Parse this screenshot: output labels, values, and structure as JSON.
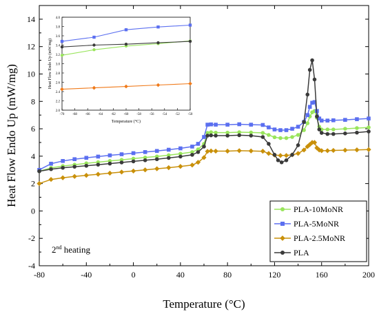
{
  "chart_data": [
    {
      "type": "line",
      "xlabel": "Temperature (°C)",
      "ylabel": "Heat Flow Endo Up (mW/mg)",
      "xlim": [
        -80,
        200
      ],
      "ylim": [
        -4,
        15
      ],
      "xticks": [
        "-80",
        "-40",
        "0",
        "40",
        "80",
        "120",
        "160",
        "200"
      ],
      "yticks": [
        "-4",
        "-2",
        "0",
        "2",
        "4",
        "6",
        "8",
        "10",
        "12",
        "14"
      ],
      "legend_position": "bottom-right",
      "annotation": {
        "main": "2",
        "sup": "nd",
        "rest": " heating"
      },
      "series": [
        {
          "name": "PLA-10MoNR",
          "color": "#99e55c",
          "marker": "circle",
          "x": [
            -80,
            -70,
            -60,
            -50,
            -40,
            -30,
            -20,
            -10,
            0,
            10,
            20,
            30,
            40,
            50,
            55,
            60,
            63,
            66,
            70,
            80,
            90,
            100,
            110,
            115,
            120,
            125,
            130,
            135,
            140,
            145,
            148,
            150,
            152,
            154,
            156,
            158,
            160,
            165,
            170,
            180,
            190,
            200
          ],
          "y": [
            2.9,
            3.15,
            3.28,
            3.38,
            3.48,
            3.56,
            3.65,
            3.73,
            3.82,
            3.9,
            3.98,
            4.07,
            4.18,
            4.3,
            4.5,
            4.9,
            5.7,
            5.75,
            5.72,
            5.72,
            5.75,
            5.73,
            5.7,
            5.55,
            5.38,
            5.32,
            5.32,
            5.4,
            5.55,
            5.9,
            6.4,
            6.9,
            7.2,
            7.3,
            6.8,
            6.15,
            5.95,
            5.95,
            5.95,
            6.0,
            6.05,
            6.1
          ]
        },
        {
          "name": "PLA-5MoNR",
          "color": "#5b6ff0",
          "marker": "square",
          "x": [
            -80,
            -70,
            -60,
            -50,
            -40,
            -30,
            -20,
            -10,
            0,
            10,
            20,
            30,
            40,
            50,
            55,
            60,
            63,
            66,
            70,
            80,
            90,
            100,
            110,
            115,
            120,
            125,
            130,
            135,
            140,
            145,
            148,
            150,
            152,
            154,
            156,
            158,
            160,
            165,
            170,
            180,
            190,
            200
          ],
          "y": [
            3.0,
            3.45,
            3.65,
            3.78,
            3.88,
            3.97,
            4.06,
            4.14,
            4.22,
            4.3,
            4.38,
            4.47,
            4.57,
            4.7,
            4.9,
            5.4,
            6.3,
            6.32,
            6.3,
            6.3,
            6.33,
            6.3,
            6.28,
            6.1,
            5.95,
            5.9,
            5.9,
            6.0,
            6.15,
            6.5,
            7.0,
            7.6,
            7.9,
            7.95,
            7.3,
            6.75,
            6.6,
            6.6,
            6.62,
            6.65,
            6.7,
            6.75
          ]
        },
        {
          "name": "PLA-2.5MoNR",
          "color": "#c9900a",
          "marker": "diamond",
          "x": [
            -80,
            -70,
            -60,
            -50,
            -40,
            -30,
            -20,
            -10,
            0,
            10,
            20,
            30,
            40,
            50,
            55,
            60,
            63,
            66,
            70,
            80,
            90,
            100,
            110,
            115,
            120,
            125,
            130,
            135,
            140,
            145,
            148,
            150,
            152,
            154,
            156,
            158,
            160,
            165,
            170,
            180,
            190,
            200
          ],
          "y": [
            2.0,
            2.3,
            2.42,
            2.52,
            2.6,
            2.68,
            2.76,
            2.84,
            2.92,
            3.0,
            3.08,
            3.16,
            3.25,
            3.35,
            3.55,
            3.9,
            4.35,
            4.38,
            4.37,
            4.37,
            4.4,
            4.38,
            4.36,
            4.2,
            4.08,
            4.05,
            4.05,
            4.1,
            4.2,
            4.45,
            4.7,
            4.85,
            5.0,
            5.0,
            4.6,
            4.45,
            4.4,
            4.4,
            4.42,
            4.44,
            4.46,
            4.48
          ]
        },
        {
          "name": "PLA",
          "color": "#3a3a3a",
          "marker": "circle",
          "x": [
            -80,
            -70,
            -60,
            -50,
            -40,
            -30,
            -20,
            -10,
            0,
            10,
            20,
            30,
            40,
            50,
            55,
            60,
            63,
            66,
            70,
            80,
            90,
            100,
            110,
            115,
            120,
            123,
            126,
            130,
            135,
            140,
            145,
            148,
            150,
            152,
            154,
            156,
            158,
            160,
            165,
            170,
            180,
            190,
            200
          ],
          "y": [
            2.9,
            3.05,
            3.15,
            3.23,
            3.3,
            3.38,
            3.46,
            3.54,
            3.62,
            3.7,
            3.78,
            3.87,
            3.97,
            4.1,
            4.3,
            4.7,
            5.5,
            5.52,
            5.5,
            5.5,
            5.53,
            5.5,
            5.4,
            4.9,
            4.1,
            3.7,
            3.55,
            3.7,
            4.1,
            4.8,
            6.5,
            8.5,
            10.3,
            11.0,
            9.6,
            6.9,
            5.95,
            5.7,
            5.62,
            5.62,
            5.66,
            5.72,
            5.8
          ]
        }
      ]
    },
    {
      "type": "line",
      "xlabel": "Temperature (°C)",
      "ylabel": "Heat Flow Endo Up (mW/mg)",
      "xlim": [
        -70,
        -50
      ],
      "ylim": [
        2.0,
        4.0
      ],
      "xticks": [
        "-70",
        "-68",
        "-66",
        "-64",
        "-62",
        "-60",
        "-58",
        "-56",
        "-54",
        "-52",
        "-50"
      ],
      "yticks": [
        "2.0",
        "2.2",
        "2.4",
        "2.6",
        "2.8",
        "3.0",
        "3.2",
        "3.4",
        "3.6",
        "3.8",
        "4.0"
      ],
      "series": [
        {
          "name": "PLA-10MoNR",
          "color": "#99e55c",
          "marker": "circle",
          "x": [
            -70,
            -65,
            -60,
            -55,
            -50
          ],
          "y": [
            3.18,
            3.3,
            3.38,
            3.43,
            3.49
          ]
        },
        {
          "name": "PLA-5MoNR",
          "color": "#5b6ff0",
          "marker": "square",
          "x": [
            -70,
            -65,
            -60,
            -55,
            -50
          ],
          "y": [
            3.48,
            3.57,
            3.73,
            3.79,
            3.83
          ]
        },
        {
          "name": "PLA",
          "color": "#3a3a3a",
          "marker": "circle",
          "x": [
            -70,
            -65,
            -60,
            -55,
            -50
          ],
          "y": [
            3.36,
            3.4,
            3.42,
            3.45,
            3.48
          ]
        },
        {
          "name": "PLA-2.5MoNR",
          "color": "#f07a1a",
          "marker": "diamond",
          "x": [
            -70,
            -65,
            -60,
            -55,
            -50
          ],
          "y": [
            2.45,
            2.48,
            2.51,
            2.54,
            2.57
          ]
        }
      ]
    }
  ]
}
